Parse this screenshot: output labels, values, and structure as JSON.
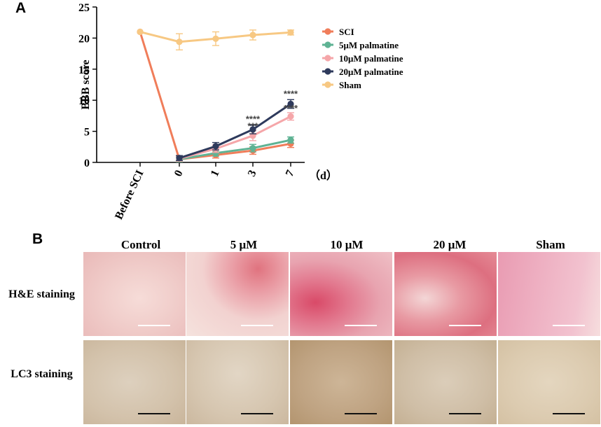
{
  "panel_a_label": "A",
  "panel_b_label": "B",
  "chart_data": {
    "type": "line",
    "categories": [
      "Before SCI",
      "0",
      "1",
      "3",
      "7"
    ],
    "x_unit": "（d）",
    "ylabel": "BBB score",
    "ylim": [
      0,
      25
    ],
    "yticks": [
      0,
      5,
      10,
      15,
      20,
      25
    ],
    "legend_position": "right",
    "series": [
      {
        "name": "SCI",
        "color": "#f07d5a",
        "values": [
          21,
          0.5,
          1.2,
          1.9,
          3.0
        ],
        "errors": [
          0,
          0.4,
          0.5,
          0.6,
          0.6
        ]
      },
      {
        "name": "5μM palmatine",
        "color": "#5fb394",
        "values": [
          null,
          0.5,
          1.5,
          2.3,
          3.6
        ],
        "errors": [
          0,
          0.4,
          0.5,
          0.6,
          0.5
        ]
      },
      {
        "name": "10μM palmatine",
        "color": "#f5a6a9",
        "values": [
          null,
          0.6,
          2.2,
          4.3,
          7.4
        ],
        "errors": [
          0,
          0.4,
          0.6,
          0.8,
          0.6
        ]
      },
      {
        "name": "20μM palmatine",
        "color": "#2e3a5c",
        "values": [
          null,
          0.7,
          2.6,
          5.3,
          9.4
        ],
        "errors": [
          0,
          0.4,
          0.6,
          0.7,
          0.7
        ]
      },
      {
        "name": "Sham",
        "color": "#f7c883",
        "values": [
          21,
          19.4,
          19.9,
          20.5,
          20.9
        ],
        "errors": [
          0,
          1.3,
          1.1,
          0.8,
          0.4
        ]
      }
    ],
    "annotations": [
      {
        "text": "****",
        "x": "3",
        "series": "20μM palmatine"
      },
      {
        "text": "***",
        "x": "3",
        "series": "10μM palmatine"
      },
      {
        "text": "****",
        "x": "7",
        "series": "20μM palmatine"
      },
      {
        "text": "****",
        "x": "7",
        "series": "10μM palmatine"
      }
    ]
  },
  "panel_b": {
    "columns": [
      "Control",
      "5 μM",
      "10 μM",
      "20 μM",
      "Sham"
    ],
    "rows": [
      "H&E staining",
      "LC3 staining"
    ]
  }
}
